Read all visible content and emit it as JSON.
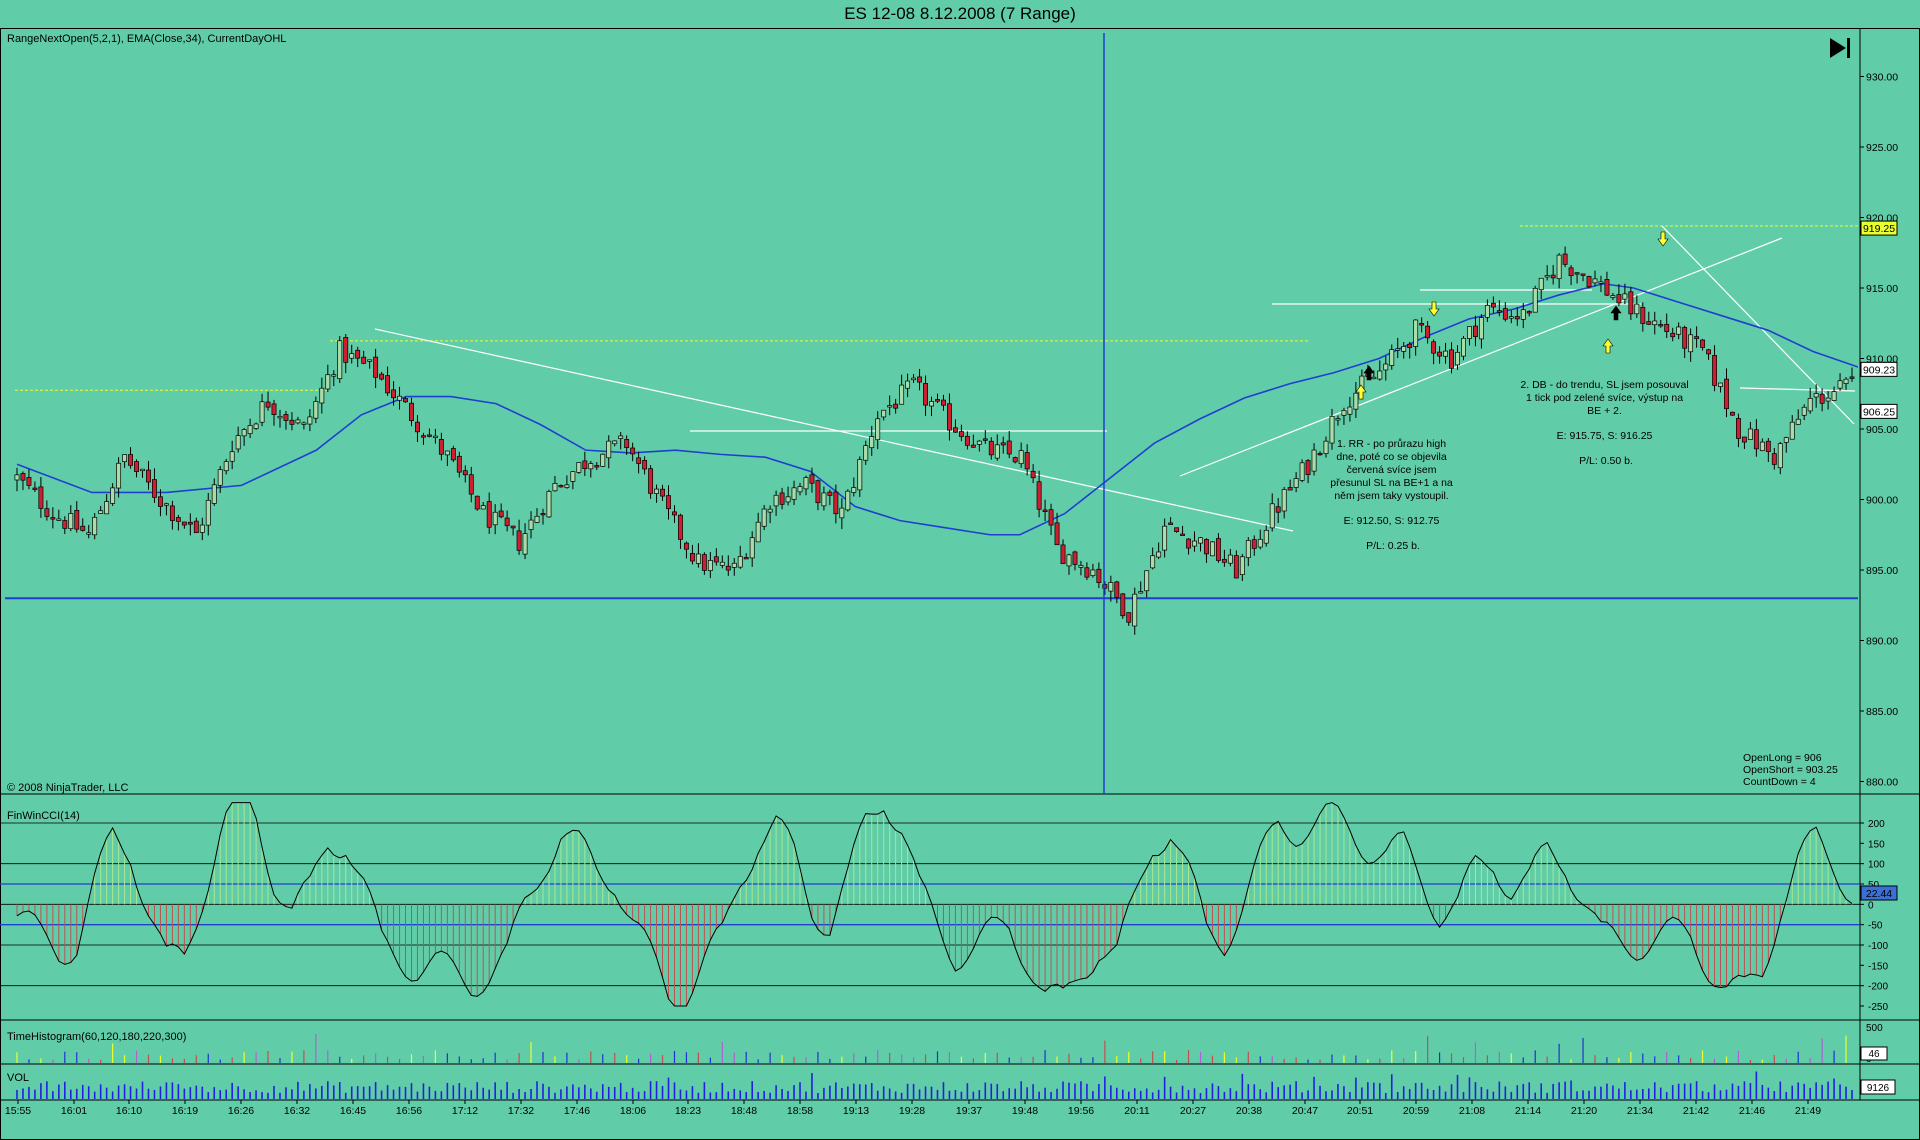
{
  "window": {
    "title": "ES 12-08  8.12.2008 (7 Range)"
  },
  "colors": {
    "background": "#61cda8",
    "up_candle": "#a8dca8",
    "down_candle": "#cc2030",
    "ema": "#1f3fd0",
    "highlight_yellow": "#e8ff30",
    "annotation": "#ffffff",
    "cci_pos": "#a8e890",
    "cci_neg": "#c05050"
  },
  "icons": {
    "scroll_to_end": "skip-to-end-icon"
  },
  "price_panel": {
    "indicators_label": "RangeNextOpen(5,2,1), EMA(Close,34), CurrentDayOHL",
    "copyright": "© 2008 NinjaTrader, LLC",
    "y_ticks": [
      "930.00",
      "925.00",
      "920.00",
      "915.00",
      "910.00",
      "905.00",
      "900.00",
      "895.00",
      "890.00",
      "885.00",
      "880.00"
    ],
    "price_badges": [
      "919.25",
      "909.23",
      "906.25"
    ],
    "annotation_1": [
      "1. RR - po průrazu high",
      "dne, poté co se objevila",
      "červená svíce jsem",
      "přesunul SL na BE+1 a na",
      "něm jsem taky vystoupil.",
      "",
      "E: 912.50, S: 912.75",
      "",
      "P/L: 0.25 b."
    ],
    "annotation_2": [
      "2. DB - do trendu, SL jsem posouval",
      "1 tick pod zelené svíce, výstup na",
      "BE + 2.",
      "",
      "E: 915.75, S: 916.25",
      "",
      "P/L: 0.50 b."
    ],
    "stats": [
      "OpenLong = 906",
      "OpenShort = 903.25",
      "CountDown = 4"
    ]
  },
  "cci_panel": {
    "label": "FinWinCCI(14)",
    "y_ticks": [
      "200",
      "150",
      "100",
      "50",
      "0",
      "-50",
      "-100",
      "-150",
      "-200",
      "-250"
    ],
    "badge": "22.44"
  },
  "time_panel": {
    "label": "TimeHistogram(60,120,180,220,300)",
    "y_ticks": [
      "500",
      "0"
    ],
    "badge": "46"
  },
  "vol_panel": {
    "label": "VOL",
    "badge": "9126"
  },
  "x_axis": {
    "labels": [
      "15:55",
      "16:01",
      "16:10",
      "16:19",
      "16:26",
      "16:32",
      "16:45",
      "16:56",
      "17:12",
      "17:32",
      "17:46",
      "18:06",
      "18:23",
      "18:48",
      "18:58",
      "19:13",
      "19:28",
      "19:37",
      "19:48",
      "19:56",
      "20:11",
      "20:27",
      "20:38",
      "20:47",
      "20:51",
      "20:59",
      "21:08",
      "21:14",
      "21:20",
      "21:34",
      "21:42",
      "21:46",
      "21:49"
    ]
  },
  "chart_data": {
    "type": "candlestick",
    "instrument": "ES 12-08",
    "date": "8.12.2008",
    "bar_type": "7 Range",
    "price_range": [
      878,
      932
    ],
    "close_path": [
      [
        0,
        901.5
      ],
      [
        6,
        899
      ],
      [
        12,
        897.5
      ],
      [
        18,
        903
      ],
      [
        24,
        900
      ],
      [
        30,
        897.5
      ],
      [
        36,
        904
      ],
      [
        42,
        907
      ],
      [
        48,
        905
      ],
      [
        54,
        910.5
      ],
      [
        60,
        909
      ],
      [
        66,
        906
      ],
      [
        72,
        903
      ],
      [
        78,
        899
      ],
      [
        84,
        897
      ],
      [
        90,
        901
      ],
      [
        96,
        903
      ],
      [
        102,
        904
      ],
      [
        108,
        899.5
      ],
      [
        114,
        895.5
      ],
      [
        120,
        895
      ],
      [
        126,
        900
      ],
      [
        132,
        901
      ],
      [
        138,
        899
      ],
      [
        144,
        906
      ],
      [
        150,
        908
      ],
      [
        156,
        905.5
      ],
      [
        162,
        903.5
      ],
      [
        168,
        903
      ],
      [
        174,
        896.5
      ],
      [
        180,
        895
      ],
      [
        186,
        892
      ],
      [
        192,
        898
      ],
      [
        198,
        897
      ],
      [
        204,
        895
      ],
      [
        210,
        899
      ],
      [
        216,
        902.5
      ],
      [
        222,
        907
      ],
      [
        228,
        909
      ],
      [
        234,
        912
      ],
      [
        240,
        910
      ],
      [
        246,
        913.5
      ],
      [
        252,
        913
      ],
      [
        258,
        917
      ],
      [
        264,
        915.5
      ],
      [
        270,
        913.5
      ],
      [
        276,
        912
      ],
      [
        282,
        910.5
      ],
      [
        288,
        905
      ],
      [
        294,
        903
      ],
      [
        300,
        907
      ],
      [
        306,
        908
      ]
    ],
    "ema_34": [
      [
        0,
        902.5
      ],
      [
        10,
        900.5
      ],
      [
        20,
        900.5
      ],
      [
        30,
        901
      ],
      [
        40,
        903.5
      ],
      [
        46,
        906
      ],
      [
        52,
        907.3
      ],
      [
        58,
        907.3
      ],
      [
        64,
        906.8
      ],
      [
        70,
        905.3
      ],
      [
        76,
        903.5
      ],
      [
        82,
        903.3
      ],
      [
        88,
        903.5
      ],
      [
        94,
        903.2
      ],
      [
        100,
        903
      ],
      [
        106,
        902
      ],
      [
        112,
        899.5
      ],
      [
        118,
        898.5
      ],
      [
        124,
        898
      ],
      [
        130,
        897.5
      ],
      [
        134,
        897.5
      ],
      [
        140,
        899
      ],
      [
        146,
        901.5
      ],
      [
        152,
        904
      ],
      [
        158,
        905.7
      ],
      [
        164,
        907.2
      ],
      [
        170,
        908.2
      ],
      [
        176,
        909
      ],
      [
        182,
        910
      ],
      [
        188,
        911.5
      ],
      [
        194,
        912.8
      ],
      [
        200,
        913.5
      ],
      [
        206,
        914.5
      ],
      [
        212,
        915.3
      ],
      [
        216,
        915
      ],
      [
        222,
        914
      ],
      [
        228,
        913
      ],
      [
        234,
        912
      ],
      [
        240,
        910.5
      ],
      [
        246,
        909.4
      ]
    ],
    "horizontal_lines": {
      "blue_support": 893,
      "yellow_levels": [
        907.75,
        911.25,
        919.4
      ]
    },
    "cci": {
      "range": [
        -260,
        260
      ],
      "levels": [
        200,
        100,
        50,
        0,
        -50,
        -100,
        -200
      ]
    },
    "stats": {
      "open_long": 906,
      "open_short": 903.25,
      "countdown": 4
    },
    "trades": [
      {
        "id": 1,
        "setup": "RR",
        "entry": 912.5,
        "stop": 912.75,
        "pl_points": 0.25
      },
      {
        "id": 2,
        "setup": "DB",
        "entry": 915.75,
        "stop": 916.25,
        "pl_points": 0.5
      }
    ]
  }
}
